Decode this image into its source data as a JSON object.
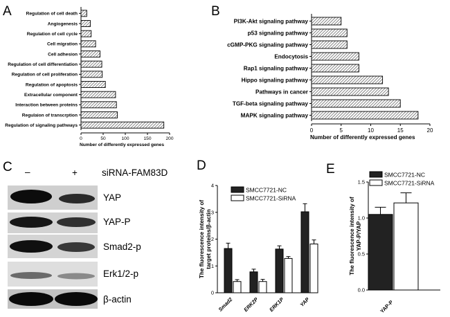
{
  "panels": {
    "A": "A",
    "B": "B",
    "C": "C",
    "D": "D",
    "E": "E"
  },
  "blot": {
    "lanes": [
      "–",
      "+"
    ],
    "treatment": "siRNA-FAM83D",
    "proteins": [
      "YAP",
      "YAP-P",
      "Smad2-p",
      "Erk1/2-p",
      "β-actin"
    ]
  },
  "colors": {
    "black_bar": "#222222",
    "white_bar": "#ffffff",
    "hatch": "#555555"
  },
  "chart_data": [
    {
      "id": "A",
      "type": "bar",
      "orientation": "horizontal",
      "categories": [
        "Regulation of cell death",
        "Angiogenesis",
        "Regulation of cell cycle",
        "Cell migration",
        "Cell adhesion",
        "Regulation of cell differentiation",
        "Regulation of cell proliferation",
        "Regulation of apoptosis",
        "Extracellular component",
        "Interaction between proteins",
        "Regulaion of transcrption",
        "Regulation of signaling pathways"
      ],
      "values": [
        13,
        21,
        23,
        33,
        43,
        47,
        48,
        55,
        78,
        80,
        82,
        187
      ],
      "xlabel": "Number of differently expressed genes",
      "xlim": [
        0,
        200
      ],
      "xticks": [
        "0",
        "50",
        "100",
        "150",
        "200"
      ]
    },
    {
      "id": "B",
      "type": "bar",
      "orientation": "horizontal",
      "categories": [
        "PI3K-Akt signaling pathway",
        "p53 signaling pathway",
        "cGMP-PKG signaling pathway",
        "Endocytosis",
        "Rap1 signaling pathway",
        "Hippo signaling pathway",
        "Pathways in cancer",
        "TGF-beta signaling pathway",
        "MAPK signaling pathway"
      ],
      "values": [
        5,
        6,
        6,
        8,
        8,
        12,
        13,
        15,
        18
      ],
      "xlabel": "Number of differently expressed genes",
      "xlim": [
        0,
        20
      ],
      "xticks": [
        "0",
        "5",
        "10",
        "15",
        "20"
      ]
    },
    {
      "id": "D",
      "type": "bar",
      "categories": [
        "Smad2",
        "ERK2P",
        "ERK1P",
        "YAP"
      ],
      "series": [
        {
          "name": "SMCC7721-NC",
          "values": [
            1.65,
            0.78,
            1.63,
            3.02
          ],
          "errors": [
            0.2,
            0.1,
            0.12,
            0.3
          ]
        },
        {
          "name": "SMCC7721-SiRNA",
          "values": [
            0.42,
            0.42,
            1.28,
            1.82
          ],
          "errors": [
            0.07,
            0.08,
            0.07,
            0.15
          ]
        }
      ],
      "ylabel": "The fluorescence intensity of target proteins/β-actin",
      "ylim": [
        0,
        4
      ],
      "yticks": [
        "0",
        "1",
        "2",
        "3",
        "4"
      ]
    },
    {
      "id": "E",
      "type": "bar",
      "categories": [
        "YAP-P"
      ],
      "series": [
        {
          "name": "SMCC7721-NC",
          "values": [
            1.05
          ],
          "errors": [
            0.1
          ]
        },
        {
          "name": "SMCC7721-SiRNA",
          "values": [
            1.21
          ],
          "errors": [
            0.14
          ]
        }
      ],
      "ylabel": "The fluorescence intensity of YAP-P/YAP",
      "ylim": [
        0,
        1.5
      ],
      "yticks": [
        "0.0",
        "0.5",
        "1.0",
        "1.5"
      ]
    }
  ]
}
